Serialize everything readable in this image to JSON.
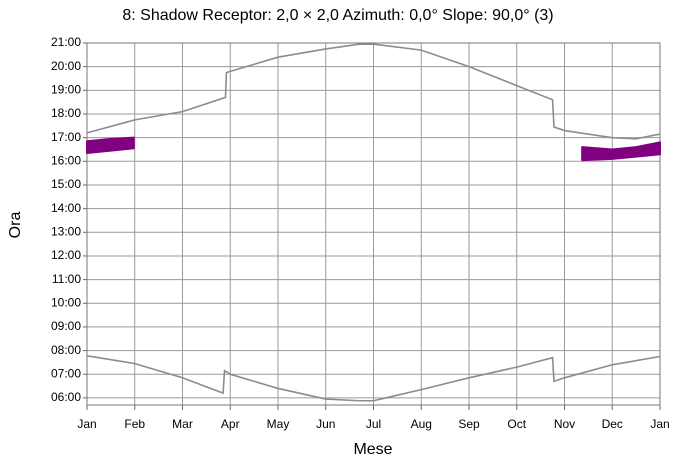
{
  "chart_data": {
    "type": "line",
    "title": "8: Shadow  Receptor: 2,0 × 2,0  Azimuth: 0,0°  Slope: 90,0° (3)",
    "xlabel": "Mese",
    "ylabel": "Ora",
    "xlim": [
      0,
      12
    ],
    "xticks": [
      {
        "value": 0,
        "label": "Jan"
      },
      {
        "value": 1,
        "label": "Feb"
      },
      {
        "value": 2,
        "label": "Mar"
      },
      {
        "value": 3,
        "label": "Apr"
      },
      {
        "value": 4,
        "label": "May"
      },
      {
        "value": 5,
        "label": "Jun"
      },
      {
        "value": 6,
        "label": "Jul"
      },
      {
        "value": 7,
        "label": "Aug"
      },
      {
        "value": 8,
        "label": "Sep"
      },
      {
        "value": 9,
        "label": "Oct"
      },
      {
        "value": 10,
        "label": "Nov"
      },
      {
        "value": 11,
        "label": "Dec"
      },
      {
        "value": 12,
        "label": "Jan"
      }
    ],
    "ylim": [
      5.7,
      21
    ],
    "yticks": [
      {
        "value": 6,
        "label": "06:00"
      },
      {
        "value": 7,
        "label": "07:00"
      },
      {
        "value": 8,
        "label": "08:00"
      },
      {
        "value": 9,
        "label": "09:00"
      },
      {
        "value": 10,
        "label": "10:00"
      },
      {
        "value": 11,
        "label": "11:00"
      },
      {
        "value": 12,
        "label": "12:00"
      },
      {
        "value": 13,
        "label": "13:00"
      },
      {
        "value": 14,
        "label": "14:00"
      },
      {
        "value": 15,
        "label": "15:00"
      },
      {
        "value": 16,
        "label": "16:00"
      },
      {
        "value": 17,
        "label": "17:00"
      },
      {
        "value": 18,
        "label": "18:00"
      },
      {
        "value": 19,
        "label": "19:00"
      },
      {
        "value": 20,
        "label": "20:00"
      },
      {
        "value": 21,
        "label": "21:00"
      }
    ],
    "grid": true,
    "series": [
      {
        "color": "#8c8c8c",
        "x": [
          0,
          1,
          2,
          2.9,
          2.92,
          3,
          4,
          5,
          5.7,
          6,
          7,
          8,
          9,
          9.75,
          9.78,
          10,
          11,
          11.5,
          12
        ],
        "values": [
          17.2,
          17.75,
          18.1,
          18.7,
          19.75,
          19.8,
          20.4,
          20.75,
          20.95,
          20.95,
          20.7,
          20.0,
          19.2,
          18.6,
          17.45,
          17.3,
          17.0,
          16.95,
          17.15
        ]
      },
      {
        "color": "#8c8c8c",
        "x": [
          0,
          1,
          2,
          2.85,
          2.88,
          3,
          4,
          5,
          5.7,
          6,
          7,
          8,
          9,
          9.75,
          9.78,
          10,
          11,
          12
        ],
        "values": [
          7.78,
          7.45,
          6.85,
          6.2,
          7.15,
          7.0,
          6.4,
          5.95,
          5.88,
          5.88,
          6.35,
          6.85,
          7.3,
          7.7,
          6.7,
          6.85,
          7.4,
          7.75
        ]
      }
    ],
    "bands": [
      {
        "color": "#800080",
        "x": [
          0,
          0.5,
          0.98
        ],
        "low": [
          16.35,
          16.45,
          16.55
        ],
        "high": [
          16.85,
          16.95,
          17.0
        ]
      },
      {
        "color": "#800080",
        "x": [
          10.37,
          11,
          11.5,
          12
        ],
        "low": [
          16.05,
          16.1,
          16.2,
          16.3
        ],
        "high": [
          16.6,
          16.5,
          16.6,
          16.8
        ]
      }
    ]
  }
}
